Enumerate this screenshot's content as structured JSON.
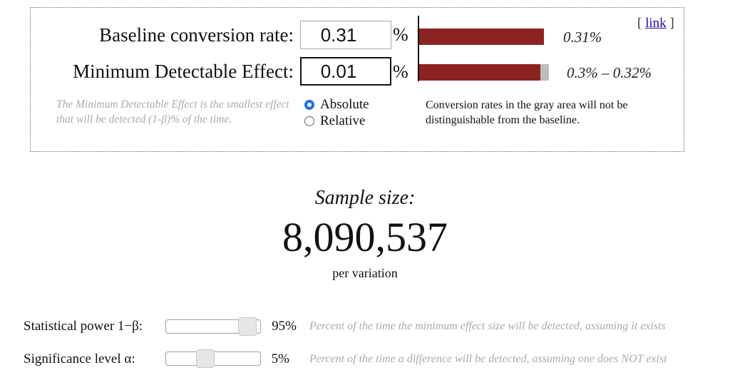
{
  "inputs": {
    "baseline": {
      "label": "Baseline conversion rate:",
      "value": "0.31",
      "unit": "%"
    },
    "mde": {
      "label": "Minimum Detectable Effect:",
      "value": "0.01",
      "unit": "%"
    }
  },
  "bars": {
    "baseline": {
      "value_text": "0.31%",
      "color": "#8b2323"
    },
    "mde": {
      "range_text": "0.3% – 0.32%",
      "color": "#8b2323",
      "gray_color": "#bdbdbd"
    }
  },
  "link": {
    "open": "[ ",
    "label": "link",
    "close": " ]"
  },
  "mde_note": "The Minimum Detectable Effect is the smallest effect that will be detected (1-β)% of the time.",
  "mode": {
    "selected": "Absolute",
    "options": [
      "Absolute",
      "Relative"
    ]
  },
  "gray_note": "Conversion rates in the gray area will not be distinguishable from the baseline.",
  "result": {
    "label": "Sample size:",
    "value": "8,090,537",
    "sub": "per variation"
  },
  "sliders": {
    "power": {
      "label": "Statistical power 1−β:",
      "value_text": "95%",
      "level": 0.95,
      "description": "Percent of the time the minimum effect size will be detected, assuming it exists"
    },
    "significance": {
      "label": "Significance level α:",
      "value_text": "5%",
      "level": 0.4,
      "description": "Percent of the time a difference will be detected, assuming one does NOT exist"
    }
  }
}
